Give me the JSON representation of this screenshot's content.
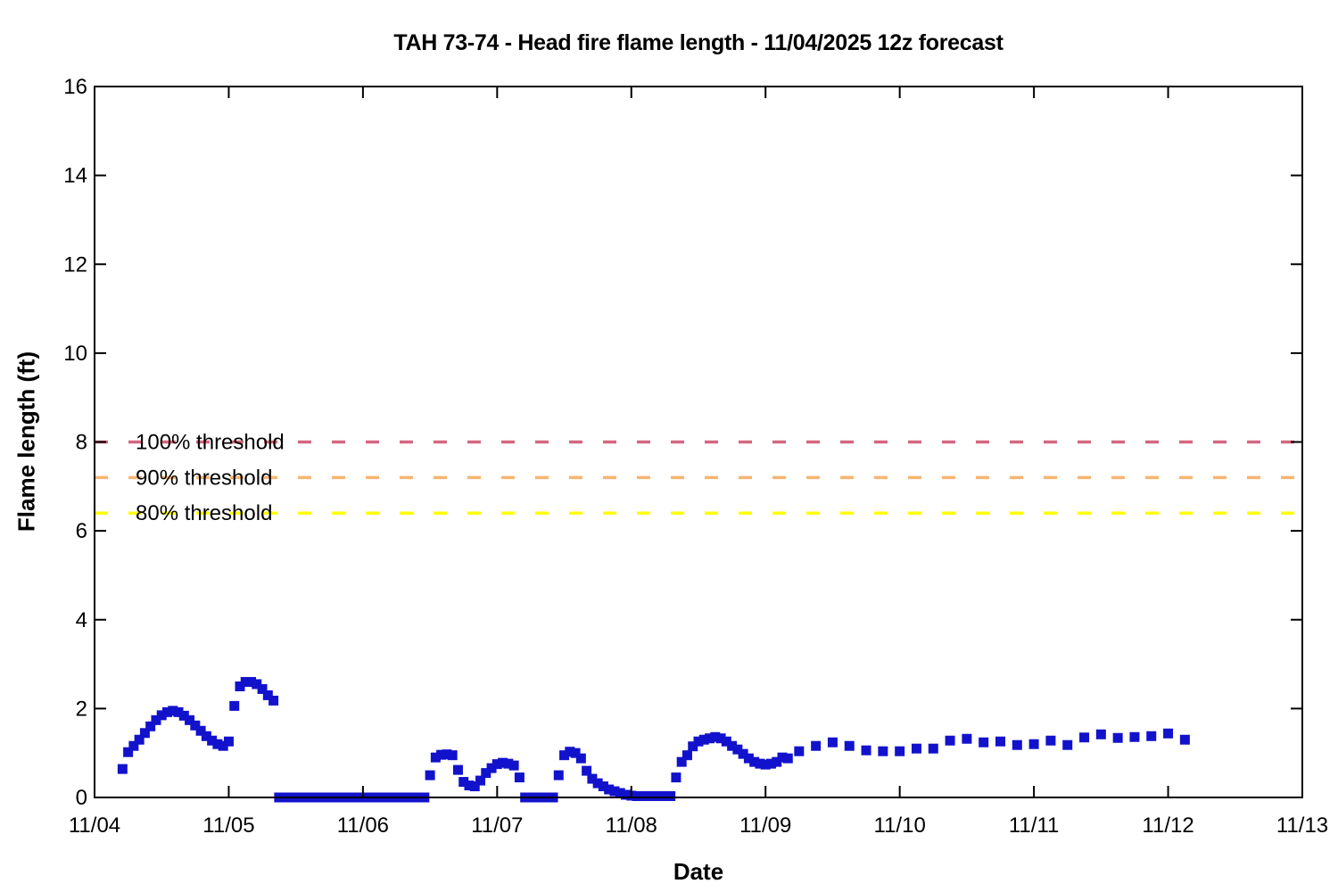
{
  "chart_data": {
    "type": "scatter",
    "title": "TAH 73-74 - Head fire flame length - 11/04/2025 12z forecast",
    "xlabel": "Date",
    "ylabel": "Flame length (ft)",
    "x_tick_labels": [
      "11/04",
      "11/05",
      "11/06",
      "11/07",
      "11/08",
      "11/09",
      "11/10",
      "11/11",
      "11/12",
      "11/13"
    ],
    "y_tick_labels": [
      "0",
      "2",
      "4",
      "6",
      "8",
      "10",
      "12",
      "14",
      "16"
    ],
    "y_tick_values": [
      0,
      2,
      4,
      6,
      8,
      10,
      12,
      14,
      16
    ],
    "ylim": [
      0,
      16
    ],
    "grid": false,
    "legend_position": "none",
    "marker": "square",
    "point_color": "#1212cc",
    "axis_color": "#000000",
    "background_color": "#ffffff",
    "thresholds": [
      {
        "label": "100% threshold",
        "value": 8,
        "color": "#d4677f"
      },
      {
        "label": "90% threshold",
        "value": 7.2,
        "color": "#f8b571"
      },
      {
        "label": "80% threshold",
        "value": 6.4,
        "color": "#ffff00"
      }
    ],
    "days": [
      {
        "date": "11/04",
        "points": [
          [
            5,
            0.64
          ],
          [
            6,
            1.02
          ],
          [
            7,
            1.16
          ],
          [
            8,
            1.3
          ],
          [
            9,
            1.45
          ],
          [
            10,
            1.6
          ],
          [
            11,
            1.74
          ],
          [
            12,
            1.85
          ],
          [
            13,
            1.92
          ],
          [
            14,
            1.95
          ],
          [
            15,
            1.92
          ],
          [
            16,
            1.84
          ],
          [
            17,
            1.74
          ],
          [
            18,
            1.62
          ],
          [
            19,
            1.5
          ],
          [
            20,
            1.38
          ],
          [
            21,
            1.28
          ],
          [
            22,
            1.2
          ],
          [
            23,
            1.16
          ]
        ]
      },
      {
        "date": "11/05",
        "points": [
          [
            0,
            1.26
          ],
          [
            1,
            2.06
          ],
          [
            2,
            2.5
          ],
          [
            3,
            2.6
          ],
          [
            4,
            2.6
          ],
          [
            5,
            2.55
          ],
          [
            6,
            2.44
          ],
          [
            7,
            2.3
          ],
          [
            8,
            2.18
          ],
          [
            9,
            0
          ],
          [
            10,
            0
          ],
          [
            11,
            0
          ],
          [
            12,
            0
          ],
          [
            13,
            0
          ],
          [
            14,
            0
          ],
          [
            15,
            0
          ],
          [
            16,
            0
          ],
          [
            17,
            0
          ],
          [
            18,
            0
          ],
          [
            19,
            0
          ],
          [
            20,
            0
          ],
          [
            21,
            0
          ],
          [
            22,
            0
          ],
          [
            23,
            0
          ]
        ]
      },
      {
        "date": "11/06",
        "points": [
          [
            0,
            0
          ],
          [
            1,
            0
          ],
          [
            2,
            0
          ],
          [
            3,
            0
          ],
          [
            4,
            0
          ],
          [
            5,
            0
          ],
          [
            6,
            0
          ],
          [
            7,
            0
          ],
          [
            8,
            0
          ],
          [
            9,
            0
          ],
          [
            10,
            0
          ],
          [
            11,
            0
          ],
          [
            12,
            0.5
          ],
          [
            13,
            0.9
          ],
          [
            14,
            0.96
          ],
          [
            15,
            0.97
          ],
          [
            16,
            0.95
          ],
          [
            17,
            0.62
          ],
          [
            18,
            0.35
          ],
          [
            19,
            0.27
          ],
          [
            20,
            0.25
          ],
          [
            21,
            0.38
          ],
          [
            22,
            0.55
          ],
          [
            23,
            0.66
          ]
        ]
      },
      {
        "date": "11/07",
        "points": [
          [
            0,
            0.75
          ],
          [
            1,
            0.78
          ],
          [
            2,
            0.76
          ],
          [
            3,
            0.72
          ],
          [
            4,
            0.45
          ],
          [
            5,
            0
          ],
          [
            6,
            0
          ],
          [
            7,
            0
          ],
          [
            8,
            0
          ],
          [
            9,
            0
          ],
          [
            10,
            0
          ],
          [
            11,
            0.5
          ],
          [
            12,
            0.95
          ],
          [
            13,
            1.03
          ],
          [
            14,
            1.0
          ],
          [
            15,
            0.88
          ],
          [
            16,
            0.6
          ],
          [
            17,
            0.42
          ],
          [
            18,
            0.32
          ],
          [
            19,
            0.25
          ],
          [
            20,
            0.18
          ],
          [
            21,
            0.14
          ],
          [
            22,
            0.1
          ],
          [
            23,
            0.06
          ]
        ]
      },
      {
        "date": "11/08",
        "points": [
          [
            0,
            0.04
          ],
          [
            1,
            0.03
          ],
          [
            2,
            0.03
          ],
          [
            3,
            0.03
          ],
          [
            4,
            0.03
          ],
          [
            5,
            0.03
          ],
          [
            6,
            0.03
          ],
          [
            7,
            0.03
          ],
          [
            8,
            0.45
          ],
          [
            9,
            0.8
          ],
          [
            10,
            0.95
          ],
          [
            11,
            1.15
          ],
          [
            12,
            1.26
          ],
          [
            13,
            1.3
          ],
          [
            14,
            1.33
          ],
          [
            15,
            1.36
          ],
          [
            16,
            1.33
          ],
          [
            17,
            1.26
          ],
          [
            18,
            1.16
          ],
          [
            19,
            1.08
          ],
          [
            20,
            0.98
          ],
          [
            21,
            0.88
          ],
          [
            22,
            0.8
          ],
          [
            23,
            0.76
          ]
        ]
      },
      {
        "date": "11/09",
        "points": [
          [
            0,
            0.74
          ],
          [
            1,
            0.76
          ],
          [
            2,
            0.8
          ],
          [
            3,
            0.9
          ],
          [
            4,
            0.88
          ],
          [
            6,
            1.04
          ],
          [
            9,
            1.16
          ],
          [
            12,
            1.24
          ],
          [
            15,
            1.16
          ],
          [
            18,
            1.06
          ],
          [
            21,
            1.04
          ]
        ]
      },
      {
        "date": "11/10",
        "points": [
          [
            0,
            1.04
          ],
          [
            3,
            1.1
          ],
          [
            6,
            1.1
          ],
          [
            9,
            1.28
          ],
          [
            12,
            1.32
          ],
          [
            15,
            1.24
          ],
          [
            18,
            1.26
          ],
          [
            21,
            1.18
          ]
        ]
      },
      {
        "date": "11/11",
        "points": [
          [
            0,
            1.2
          ],
          [
            3,
            1.28
          ],
          [
            6,
            1.18
          ],
          [
            9,
            1.35
          ],
          [
            12,
            1.42
          ],
          [
            15,
            1.34
          ],
          [
            18,
            1.36
          ],
          [
            21,
            1.38
          ]
        ]
      },
      {
        "date": "11/12",
        "points": [
          [
            0,
            1.44
          ],
          [
            3,
            1.3
          ]
        ]
      }
    ]
  }
}
